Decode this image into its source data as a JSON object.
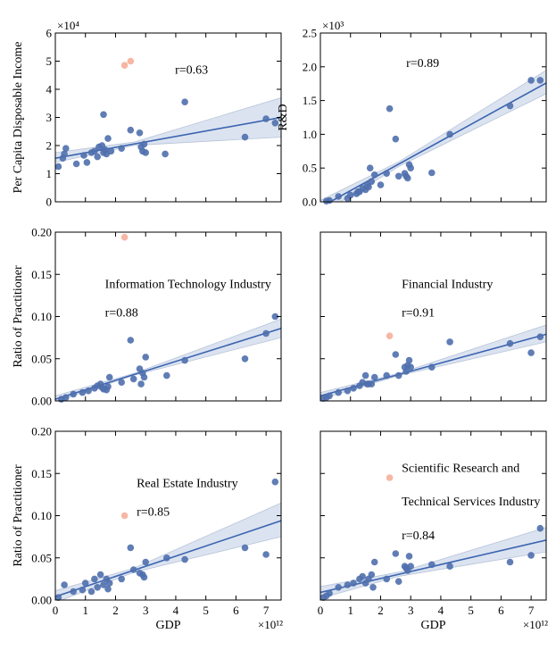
{
  "colors": {
    "point": "#4f6fad",
    "outlier": "#f6b7a4",
    "fit_line": "#3b64b0",
    "band": "#dbe3f0",
    "band_edge": "#b8c4d8",
    "axis": "#000000"
  },
  "chart_data": [
    {
      "type": "scatter",
      "panel": "top-left",
      "xlabel": "",
      "ylabel": "Per Capita Disposable Income",
      "xlim": [
        0,
        7.5
      ],
      "ylim": [
        0,
        6
      ],
      "xticks": [
        0,
        1,
        2,
        3,
        4,
        5,
        6,
        7
      ],
      "xtick_labels": [
        "",
        "",
        "",
        "",
        "",
        "",
        "",
        ""
      ],
      "yticks": [
        0,
        1,
        2,
        3,
        4,
        5,
        6
      ],
      "ytick_labels": [
        "0",
        "1",
        "2",
        "3",
        "4",
        "5",
        "6"
      ],
      "y_exponent": "×10⁴",
      "x_exponent": "",
      "annotations": [
        "r=0.63"
      ],
      "fit": {
        "x": [
          0,
          7.5
        ],
        "y": [
          1.55,
          3.0
        ],
        "band_low_start": 1.4,
        "band_high_start": 1.75,
        "band_low_end": 2.3,
        "band_high_end": 3.7
      },
      "points": [
        [
          0.1,
          1.25
        ],
        [
          0.25,
          1.55
        ],
        [
          0.3,
          1.7
        ],
        [
          0.35,
          1.9
        ],
        [
          0.7,
          1.35
        ],
        [
          0.95,
          1.65
        ],
        [
          1.05,
          1.4
        ],
        [
          1.2,
          1.75
        ],
        [
          1.3,
          1.8
        ],
        [
          1.4,
          1.6
        ],
        [
          1.45,
          1.95
        ],
        [
          1.55,
          2.0
        ],
        [
          1.6,
          1.75
        ],
        [
          1.65,
          1.85
        ],
        [
          1.7,
          1.7
        ],
        [
          1.75,
          2.25
        ],
        [
          1.85,
          1.8
        ],
        [
          2.2,
          1.9
        ],
        [
          2.5,
          2.55
        ],
        [
          2.8,
          2.45
        ],
        [
          2.85,
          1.95
        ],
        [
          2.9,
          1.8
        ],
        [
          2.95,
          2.05
        ],
        [
          3.0,
          1.75
        ],
        [
          3.65,
          1.7
        ],
        [
          4.3,
          3.55
        ],
        [
          6.3,
          2.3
        ],
        [
          7.0,
          2.95
        ],
        [
          7.3,
          2.8
        ],
        [
          1.6,
          3.1
        ]
      ],
      "outliers": [
        [
          2.3,
          4.85
        ],
        [
          2.5,
          5.0
        ]
      ]
    },
    {
      "type": "scatter",
      "panel": "top-right",
      "xlabel": "",
      "ylabel": "R&D",
      "xlim": [
        0,
        7.5
      ],
      "ylim": [
        0,
        2.5
      ],
      "xticks": [
        0,
        1,
        2,
        3,
        4,
        5,
        6,
        7
      ],
      "xtick_labels": [
        "",
        "",
        "",
        "",
        "",
        "",
        "",
        ""
      ],
      "yticks": [
        0,
        0.5,
        1.0,
        1.5,
        2.0,
        2.5
      ],
      "ytick_labels": [
        "0.0",
        "0.5",
        "1.0",
        "1.5",
        "2.0",
        "2.5"
      ],
      "y_exponent": "×10³",
      "x_exponent": "",
      "annotations": [
        "r=0.89"
      ],
      "fit": {
        "x": [
          0,
          7.5
        ],
        "y": [
          -0.08,
          1.76
        ],
        "band_low_start": -0.18,
        "band_high_start": 0.02,
        "band_low_end": 1.6,
        "band_high_end": 1.95
      },
      "points": [
        [
          0.2,
          0.01
        ],
        [
          0.3,
          0.02
        ],
        [
          0.6,
          0.08
        ],
        [
          0.9,
          0.05
        ],
        [
          1.0,
          0.1
        ],
        [
          1.2,
          0.12
        ],
        [
          1.3,
          0.15
        ],
        [
          1.4,
          0.2
        ],
        [
          1.5,
          0.18
        ],
        [
          1.6,
          0.22
        ],
        [
          1.65,
          0.5
        ],
        [
          1.7,
          0.3
        ],
        [
          1.8,
          0.4
        ],
        [
          2.0,
          0.25
        ],
        [
          2.2,
          0.42
        ],
        [
          2.3,
          1.38
        ],
        [
          2.5,
          0.93
        ],
        [
          2.6,
          0.38
        ],
        [
          2.8,
          0.42
        ],
        [
          2.85,
          0.38
        ],
        [
          2.9,
          0.35
        ],
        [
          2.95,
          0.55
        ],
        [
          3.0,
          0.5
        ],
        [
          3.7,
          0.43
        ],
        [
          4.3,
          1.0
        ],
        [
          6.3,
          1.42
        ],
        [
          7.0,
          1.8
        ],
        [
          7.3,
          1.8
        ],
        [
          1.25,
          0.15
        ],
        [
          1.55,
          0.25
        ]
      ],
      "outliers": []
    },
    {
      "type": "scatter",
      "panel": "middle-left",
      "xlabel": "",
      "ylabel": "Ratio of Practitioner",
      "xlim": [
        0,
        7.5
      ],
      "ylim": [
        0,
        0.2
      ],
      "xticks": [
        0,
        1,
        2,
        3,
        4,
        5,
        6,
        7
      ],
      "xtick_labels": [
        "",
        "",
        "",
        "",
        "",
        "",
        "",
        ""
      ],
      "yticks": [
        0,
        0.05,
        0.1,
        0.15,
        0.2
      ],
      "ytick_labels": [
        "0.00",
        "0.05",
        "0.10",
        "0.15",
        "0.20"
      ],
      "y_exponent": "",
      "x_exponent": "",
      "annotations": [
        "Information Technology Industry",
        "r=0.88"
      ],
      "fit": {
        "x": [
          0,
          7.5
        ],
        "y": [
          0.002,
          0.086
        ],
        "band_low_start": -0.001,
        "band_high_start": 0.006,
        "band_low_end": 0.075,
        "band_high_end": 0.097
      },
      "points": [
        [
          0.2,
          0.002
        ],
        [
          0.35,
          0.004
        ],
        [
          0.6,
          0.008
        ],
        [
          0.9,
          0.01
        ],
        [
          1.1,
          0.012
        ],
        [
          1.3,
          0.015
        ],
        [
          1.4,
          0.018
        ],
        [
          1.5,
          0.02
        ],
        [
          1.55,
          0.016
        ],
        [
          1.6,
          0.014
        ],
        [
          1.7,
          0.013
        ],
        [
          1.75,
          0.017
        ],
        [
          1.8,
          0.028
        ],
        [
          2.2,
          0.022
        ],
        [
          2.5,
          0.072
        ],
        [
          2.6,
          0.026
        ],
        [
          2.8,
          0.038
        ],
        [
          2.85,
          0.02
        ],
        [
          2.9,
          0.033
        ],
        [
          2.95,
          0.028
        ],
        [
          3.0,
          0.052
        ],
        [
          3.7,
          0.03
        ],
        [
          4.3,
          0.048
        ],
        [
          6.3,
          0.05
        ],
        [
          7.0,
          0.08
        ],
        [
          7.3,
          0.1
        ]
      ],
      "outliers": [
        [
          2.3,
          0.194
        ]
      ]
    },
    {
      "type": "scatter",
      "panel": "middle-right",
      "xlabel": "",
      "ylabel": "",
      "xlim": [
        0,
        7.5
      ],
      "ylim": [
        0,
        0.2
      ],
      "xticks": [
        0,
        1,
        2,
        3,
        4,
        5,
        6,
        7
      ],
      "xtick_labels": [
        "",
        "",
        "",
        "",
        "",
        "",
        "",
        ""
      ],
      "yticks": [
        0,
        0.05,
        0.1,
        0.15,
        0.2
      ],
      "ytick_labels": [
        "",
        "",
        "",
        "",
        ""
      ],
      "y_exponent": "",
      "x_exponent": "",
      "annotations": [
        "Financial Industry",
        "r=0.91"
      ],
      "fit": {
        "x": [
          0,
          7.5
        ],
        "y": [
          0.006,
          0.079
        ],
        "band_low_start": 0.002,
        "band_high_start": 0.01,
        "band_low_end": 0.07,
        "band_high_end": 0.09
      },
      "points": [
        [
          0.1,
          0.003
        ],
        [
          0.2,
          0.004
        ],
        [
          0.3,
          0.006
        ],
        [
          0.6,
          0.01
        ],
        [
          0.9,
          0.012
        ],
        [
          1.1,
          0.015
        ],
        [
          1.3,
          0.018
        ],
        [
          1.4,
          0.022
        ],
        [
          1.5,
          0.03
        ],
        [
          1.6,
          0.02
        ],
        [
          1.7,
          0.02
        ],
        [
          1.8,
          0.028
        ],
        [
          2.2,
          0.03
        ],
        [
          2.5,
          0.055
        ],
        [
          2.6,
          0.03
        ],
        [
          2.8,
          0.04
        ],
        [
          2.85,
          0.035
        ],
        [
          2.9,
          0.042
        ],
        [
          2.95,
          0.048
        ],
        [
          3.0,
          0.04
        ],
        [
          3.7,
          0.04
        ],
        [
          4.3,
          0.07
        ],
        [
          6.3,
          0.068
        ],
        [
          7.0,
          0.057
        ],
        [
          7.3,
          0.076
        ],
        [
          1.55,
          0.02
        ]
      ],
      "outliers": [
        [
          2.3,
          0.077
        ]
      ]
    },
    {
      "type": "scatter",
      "panel": "bottom-left",
      "xlabel": "GDP",
      "ylabel": "Ratio of Practitioner",
      "xlim": [
        0,
        7.5
      ],
      "ylim": [
        0,
        0.2
      ],
      "xticks": [
        0,
        1,
        2,
        3,
        4,
        5,
        6,
        7
      ],
      "xtick_labels": [
        "0",
        "1",
        "2",
        "3",
        "4",
        "5",
        "6",
        "7"
      ],
      "yticks": [
        0,
        0.05,
        0.1,
        0.15,
        0.2
      ],
      "ytick_labels": [
        "0.00",
        "0.05",
        "0.10",
        "0.15",
        "0.20"
      ],
      "y_exponent": "",
      "x_exponent": "×10¹²",
      "annotations": [
        "Real Estate Industry",
        "r=0.85"
      ],
      "fit": {
        "x": [
          0,
          7.5
        ],
        "y": [
          0.004,
          0.094
        ],
        "band_low_start": -0.003,
        "band_high_start": 0.011,
        "band_low_end": 0.075,
        "band_high_end": 0.115
      },
      "points": [
        [
          0.1,
          0.003
        ],
        [
          0.3,
          0.018
        ],
        [
          0.6,
          0.01
        ],
        [
          0.9,
          0.012
        ],
        [
          1.0,
          0.02
        ],
        [
          1.2,
          0.01
        ],
        [
          1.3,
          0.025
        ],
        [
          1.4,
          0.015
        ],
        [
          1.5,
          0.03
        ],
        [
          1.6,
          0.018
        ],
        [
          1.7,
          0.025
        ],
        [
          1.75,
          0.013
        ],
        [
          1.8,
          0.02
        ],
        [
          2.2,
          0.025
        ],
        [
          2.5,
          0.062
        ],
        [
          2.6,
          0.036
        ],
        [
          2.8,
          0.032
        ],
        [
          2.9,
          0.03
        ],
        [
          2.95,
          0.027
        ],
        [
          3.0,
          0.045
        ],
        [
          3.7,
          0.05
        ],
        [
          4.3,
          0.048
        ],
        [
          6.3,
          0.062
        ],
        [
          7.0,
          0.054
        ],
        [
          7.3,
          0.14
        ]
      ],
      "outliers": [
        [
          2.3,
          0.1
        ]
      ]
    },
    {
      "type": "scatter",
      "panel": "bottom-right",
      "xlabel": "GDP",
      "ylabel": "",
      "xlim": [
        0,
        7.5
      ],
      "ylim": [
        0,
        0.2
      ],
      "xticks": [
        0,
        1,
        2,
        3,
        4,
        5,
        6,
        7
      ],
      "xtick_labels": [
        "0",
        "1",
        "2",
        "3",
        "4",
        "5",
        "6",
        "7"
      ],
      "yticks": [
        0,
        0.05,
        0.1,
        0.15,
        0.2
      ],
      "ytick_labels": [
        "",
        "",
        "",
        "",
        ""
      ],
      "y_exponent": "",
      "x_exponent": "×10¹²",
      "annotations": [
        "Scientific Research and",
        "Technical Services Industry",
        "r=0.84"
      ],
      "fit": {
        "x": [
          0,
          7.5
        ],
        "y": [
          0.009,
          0.071
        ],
        "band_low_start": 0.002,
        "band_high_start": 0.016,
        "band_low_end": 0.057,
        "band_high_end": 0.086
      },
      "points": [
        [
          0.1,
          0.003
        ],
        [
          0.2,
          0.005
        ],
        [
          0.3,
          0.008
        ],
        [
          0.6,
          0.015
        ],
        [
          0.9,
          0.018
        ],
        [
          1.1,
          0.02
        ],
        [
          1.3,
          0.025
        ],
        [
          1.4,
          0.028
        ],
        [
          1.5,
          0.02
        ],
        [
          1.6,
          0.025
        ],
        [
          1.7,
          0.03
        ],
        [
          1.8,
          0.045
        ],
        [
          1.75,
          0.015
        ],
        [
          2.2,
          0.025
        ],
        [
          2.5,
          0.055
        ],
        [
          2.6,
          0.022
        ],
        [
          2.8,
          0.04
        ],
        [
          2.85,
          0.038
        ],
        [
          2.9,
          0.035
        ],
        [
          2.95,
          0.052
        ],
        [
          3.0,
          0.04
        ],
        [
          3.7,
          0.042
        ],
        [
          4.3,
          0.04
        ],
        [
          6.3,
          0.045
        ],
        [
          7.0,
          0.053
        ],
        [
          7.3,
          0.085
        ]
      ],
      "outliers": [
        [
          2.3,
          0.145
        ]
      ]
    }
  ]
}
